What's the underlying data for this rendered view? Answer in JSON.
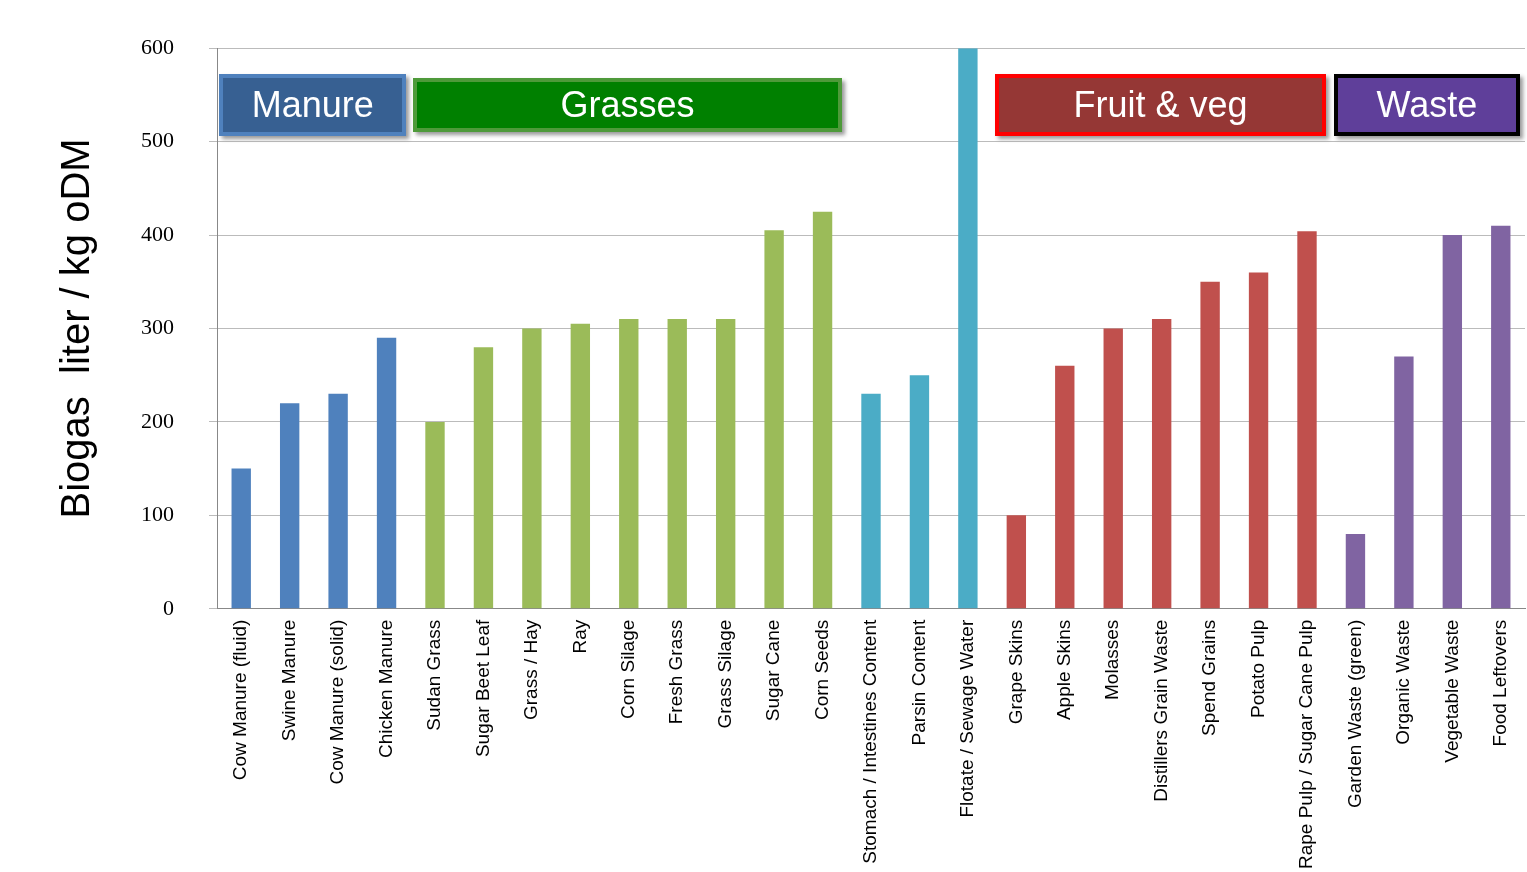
{
  "chart_data": {
    "type": "bar",
    "ylabel": "Biogas  liter / kg oDM",
    "categories": [
      "Cow Manure (fluid)",
      "Swine Manure",
      "Cow Manure (solid)",
      "Chicken Manure",
      "Sudan Grass",
      "Sugar Beet Leaf",
      "Grass / Hay",
      "Ray",
      "Corn Silage",
      "Fresh Grass",
      "Grass Silage",
      "Sugar Cane",
      "Corn Seeds",
      "Stomach / Intestines Content",
      "Parsin Content",
      "Flotate / Sewage Water",
      "Grape Skins",
      "Apple Skins",
      "Molasses",
      "Distillers Grain Waste",
      "Spend Grains",
      "Potato Pulp",
      "Rape Pulp / Sugar Cane Pulp",
      "Garden Waste (green)",
      "Organic Waste",
      "Vegetable Waste",
      "Food Leftovers"
    ],
    "values": [
      150,
      220,
      230,
      290,
      200,
      280,
      300,
      305,
      310,
      310,
      310,
      405,
      425,
      230,
      250,
      600,
      100,
      260,
      300,
      310,
      350,
      360,
      404,
      80,
      270,
      400,
      410
    ],
    "colors": [
      "#4f81bd",
      "#4f81bd",
      "#4f81bd",
      "#4f81bd",
      "#9bbb59",
      "#9bbb59",
      "#9bbb59",
      "#9bbb59",
      "#9bbb59",
      "#9bbb59",
      "#9bbb59",
      "#9bbb59",
      "#9bbb59",
      "#4bacc6",
      "#4bacc6",
      "#4bacc6",
      "#c0504d",
      "#c0504d",
      "#c0504d",
      "#c0504d",
      "#c0504d",
      "#c0504d",
      "#c0504d",
      "#8064a2",
      "#8064a2",
      "#8064a2",
      "#8064a2"
    ],
    "ylim": [
      0,
      600
    ],
    "yticks": [
      0,
      100,
      200,
      300,
      400,
      500,
      600
    ],
    "grid": "y",
    "legend": false,
    "annotations": [
      "Manure",
      "Grasses",
      "Fruit & veg",
      "Waste"
    ]
  }
}
